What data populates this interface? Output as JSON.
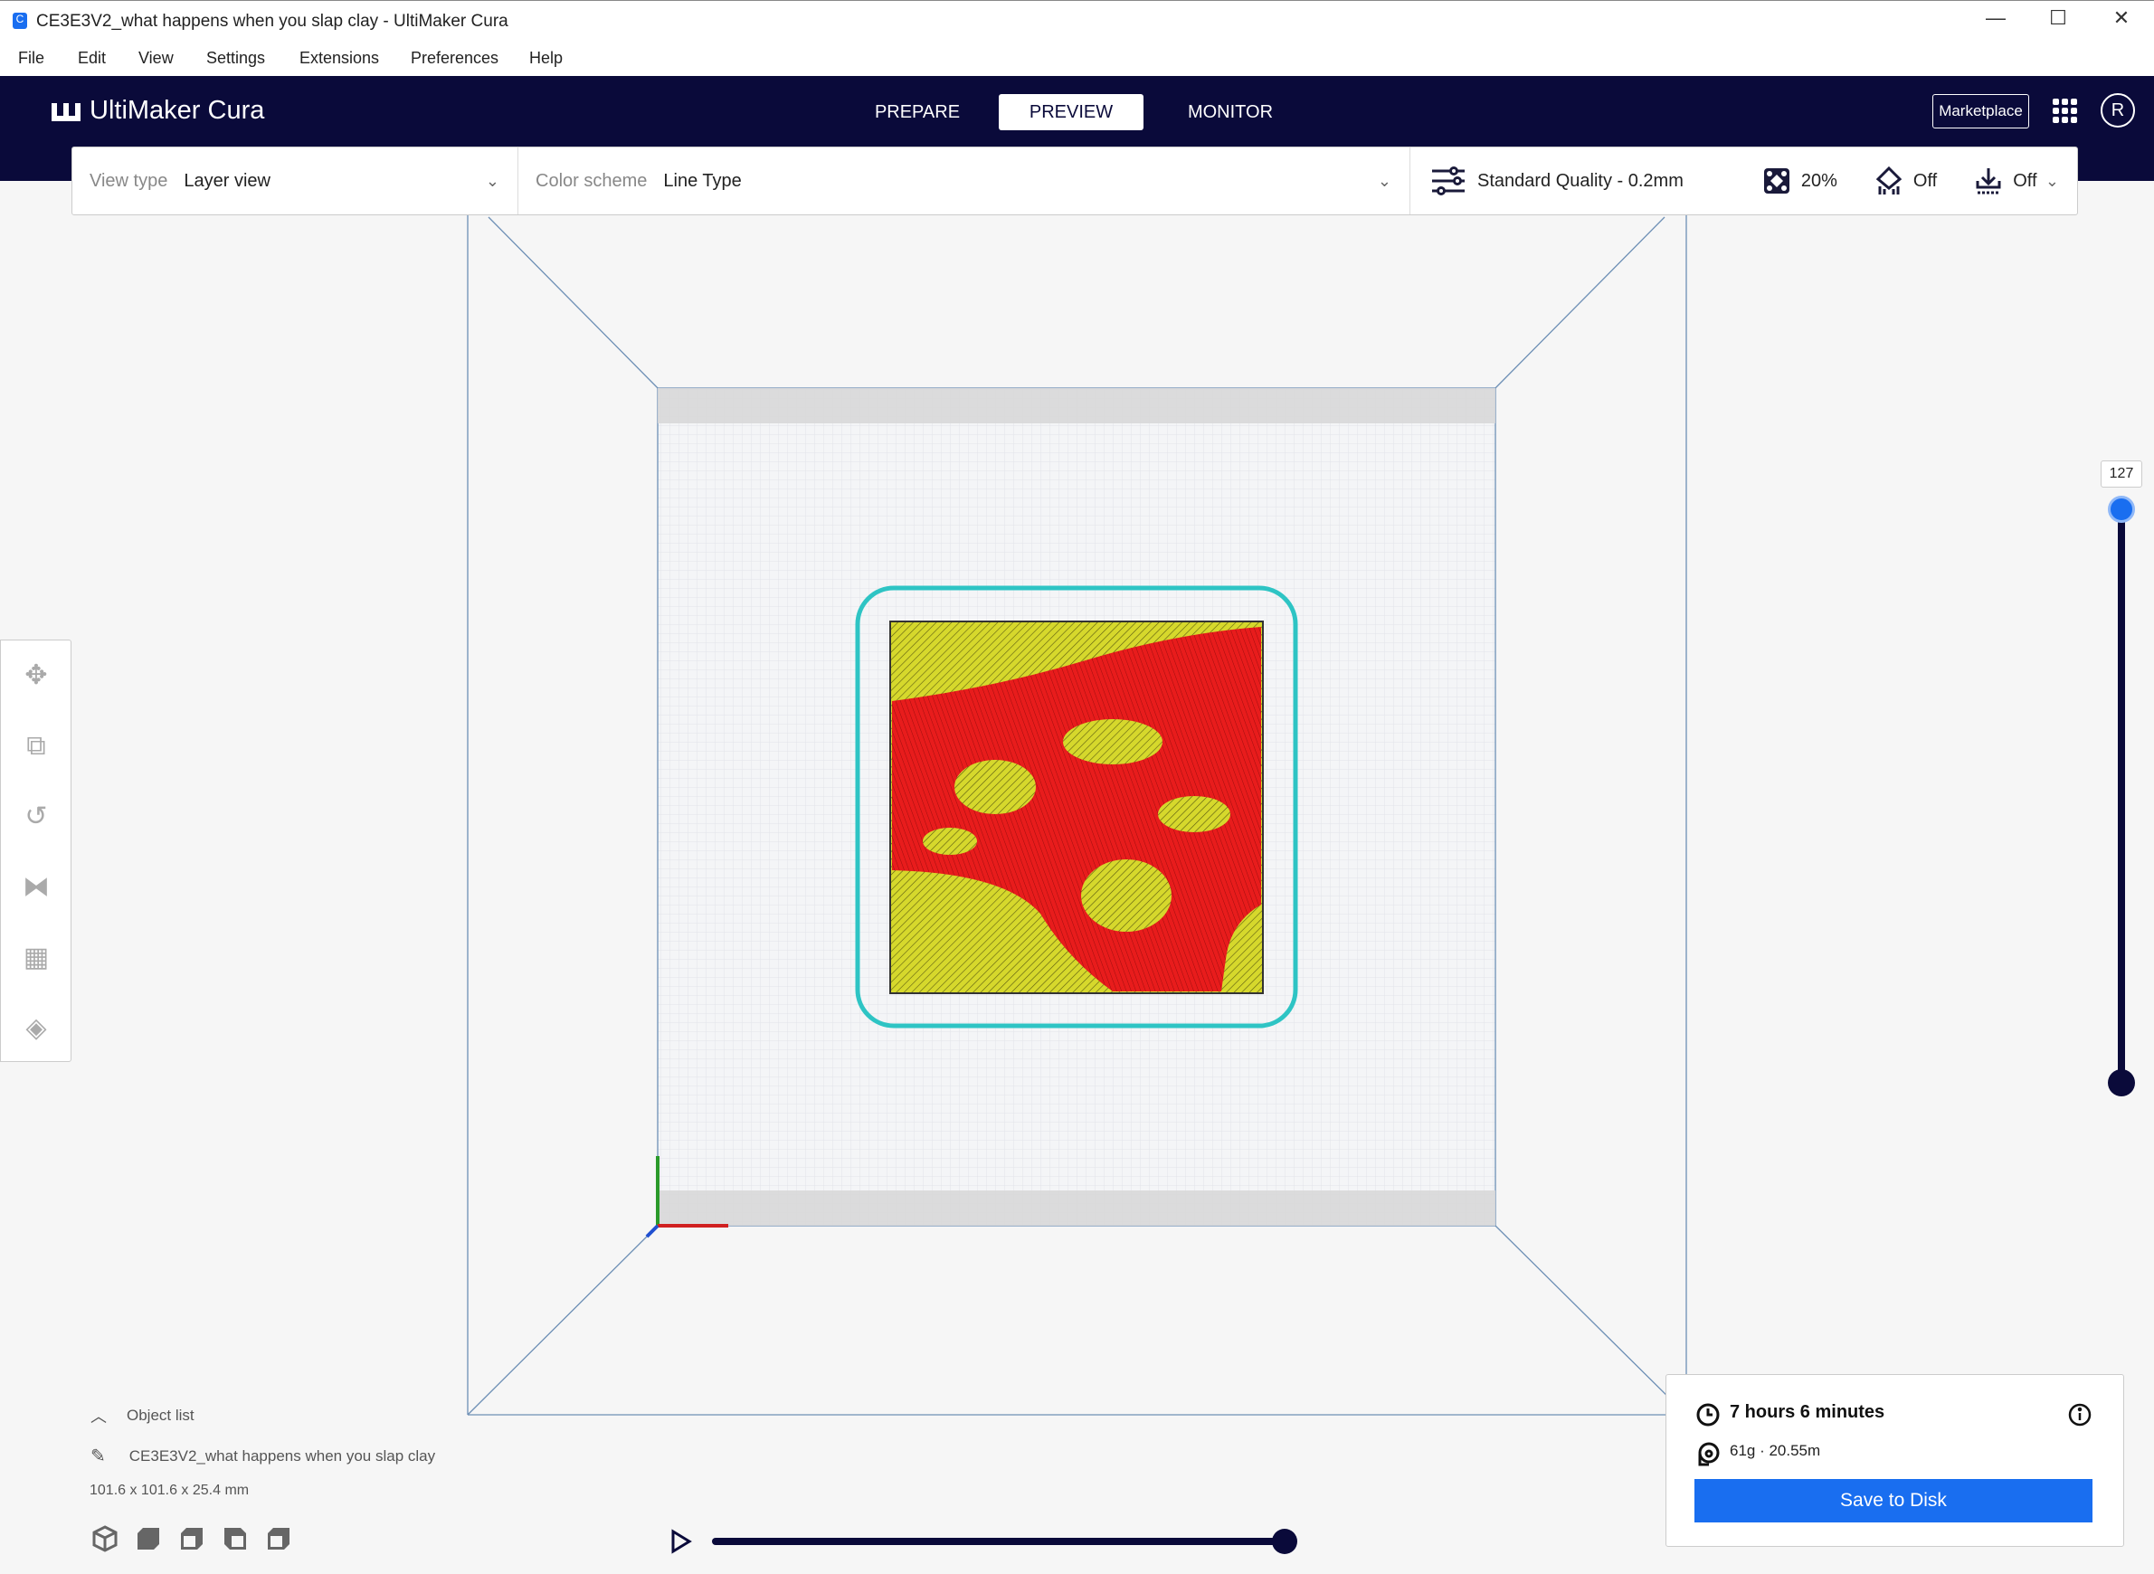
{
  "window": {
    "title": "CE3E3V2_what happens when you slap clay - UltiMaker Cura",
    "minimize": "—",
    "maximize": "☐",
    "close": "✕"
  },
  "menu": [
    "File",
    "Edit",
    "View",
    "Settings",
    "Extensions",
    "Preferences",
    "Help"
  ],
  "header": {
    "logo": "UltiMaker Cura",
    "tabs": [
      {
        "label": "PREPARE",
        "active": false
      },
      {
        "label": "PREVIEW",
        "active": true
      },
      {
        "label": "MONITOR",
        "active": false
      }
    ],
    "marketplace": "Marketplace",
    "avatar": "R"
  },
  "toolbar": {
    "view_type_label": "View type",
    "view_type": "Layer view",
    "color_scheme_label": "Color scheme",
    "color_scheme": "Line Type",
    "quality": "Standard Quality - 0.2mm",
    "infill": "20%",
    "support": "Off",
    "adhesion": "Off"
  },
  "left_tools": [
    "move-icon",
    "scale-icon",
    "rotate-icon",
    "mirror-icon",
    "per-model-settings-icon",
    "support-blocker-icon"
  ],
  "layer_slider": {
    "current_layer": "127",
    "value_fraction": 1.0
  },
  "path_slider": {
    "value_fraction": 1.0
  },
  "object_list": {
    "header": "Object list",
    "object_name": "CE3E3V2_what happens when you slap clay",
    "dimensions": "101.6 x 101.6 x 25.4 mm"
  },
  "view_buttons": [
    "3d-view-icon",
    "front-view-icon",
    "top-view-icon",
    "left-view-icon",
    "right-view-icon"
  ],
  "print": {
    "time": "7 hours 6 minutes",
    "material": "61g · 20.55m",
    "save": "Save to Disk"
  },
  "colors": {
    "header": "#0a0a3a",
    "accent": "#196ef0",
    "skin": "#d4d42a",
    "wall": "#e61e1e",
    "skirt": "#2ec4c4"
  }
}
